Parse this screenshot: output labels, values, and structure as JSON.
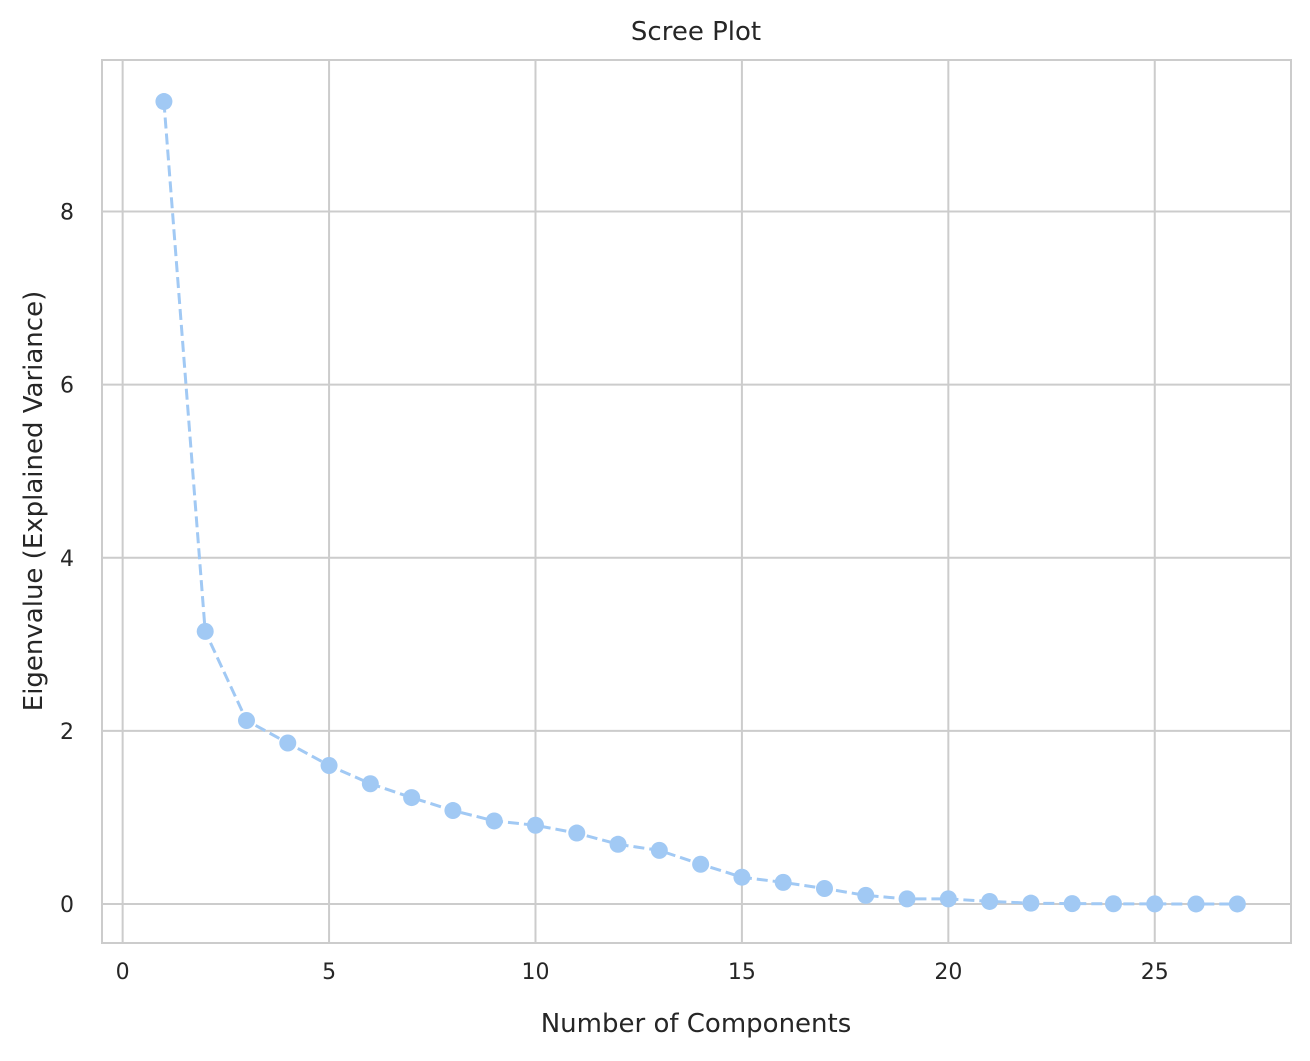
{
  "chart_data": {
    "type": "line",
    "title": "Scree Plot",
    "xlabel": "Number of Components",
    "ylabel": "Eigenvalue (Explained Variance)",
    "xlim": [
      -0.5,
      28.3
    ],
    "ylim": [
      -0.45,
      9.75
    ],
    "xticks": [
      0,
      5,
      10,
      15,
      20,
      25
    ],
    "yticks": [
      0,
      2,
      4,
      6,
      8
    ],
    "grid": true,
    "legend": "none",
    "line_style": "dashed",
    "marker": "circle",
    "colors": {
      "series": "#a1c9f4",
      "grid": "#cccccc",
      "spine": "#cccccc",
      "text": "#262626"
    },
    "series": [
      {
        "x": [
          1,
          2,
          3,
          4,
          5,
          6,
          7,
          8,
          9,
          10,
          11,
          12,
          13,
          14,
          15,
          16,
          17,
          18,
          19,
          20,
          21,
          22,
          23,
          24,
          25,
          26,
          27
        ],
        "values": [
          9.27,
          3.15,
          2.12,
          1.86,
          1.6,
          1.39,
          1.23,
          1.08,
          0.96,
          0.91,
          0.82,
          0.69,
          0.62,
          0.46,
          0.31,
          0.25,
          0.18,
          0.1,
          0.06,
          0.06,
          0.03,
          0.01,
          0.005,
          0.003,
          0.002,
          0.001,
          0.001
        ]
      }
    ]
  }
}
